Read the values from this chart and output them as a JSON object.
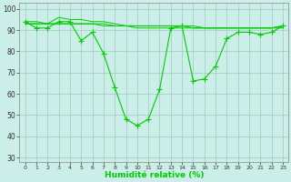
{
  "x_values": [
    0,
    1,
    2,
    3,
    4,
    5,
    6,
    7,
    8,
    9,
    10,
    11,
    12,
    13,
    14,
    15,
    16,
    17,
    18,
    19,
    20,
    21,
    22,
    23
  ],
  "y_main": [
    94,
    91,
    91,
    94,
    94,
    85,
    89,
    79,
    63,
    48,
    45,
    48,
    62,
    91,
    92,
    66,
    67,
    73,
    86,
    89,
    89,
    88,
    89,
    92
  ],
  "y_smooth1": [
    94,
    94,
    93,
    96,
    95,
    95,
    94,
    94,
    93,
    92,
    92,
    92,
    92,
    92,
    92,
    91,
    91,
    91,
    91,
    91,
    91,
    91,
    91,
    92
  ],
  "y_smooth2": [
    93,
    93,
    93,
    93,
    93,
    93,
    93,
    93,
    92,
    92,
    91,
    91,
    91,
    91,
    91,
    91,
    91,
    91,
    91,
    91,
    91,
    91,
    91,
    91
  ],
  "y_smooth3": [
    93,
    93,
    93,
    93,
    93,
    93,
    93,
    92,
    92,
    92,
    92,
    92,
    92,
    92,
    92,
    92,
    91,
    91,
    91,
    91,
    91,
    91,
    91,
    92
  ],
  "line_color": "#00cc00",
  "bg_color": "#cceee8",
  "grid_color": "#99ccbb",
  "xlabel": "Humidité relative (%)",
  "ylim": [
    28,
    103
  ],
  "yticks": [
    30,
    40,
    50,
    60,
    70,
    80,
    90,
    100
  ],
  "marker_size": 2.5
}
